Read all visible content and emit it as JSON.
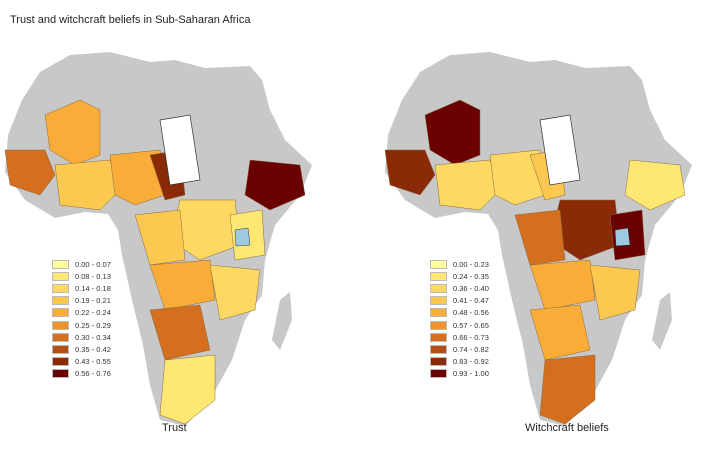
{
  "title": "Trust and witchcraft beliefs in Sub-Saharan Africa",
  "land_color": "#c8c8c8",
  "ramp": [
    "#ffff99",
    "#fee873",
    "#fdd862",
    "#fcc850",
    "#f9ad38",
    "#ee922b",
    "#d36f1e",
    "#b34e14",
    "#8b2a07",
    "#6b0000"
  ],
  "maps": [
    {
      "caption": "Trust",
      "legend": [
        "0.00 - 0.07",
        "0.08 - 0.13",
        "0.14 - 0.18",
        "0.19 - 0.21",
        "0.22 - 0.24",
        "0.25 - 0.29",
        "0.30 - 0.34",
        "0.35 - 0.42",
        "0.43 - 0.55",
        "0.56 - 0.76"
      ]
    },
    {
      "caption": "Witchcraft beliefs",
      "legend": [
        "0.00 - 0.23",
        "0.24 - 0.35",
        "0.36 - 0.40",
        "0.41 - 0.47",
        "0.48 - 0.56",
        "0.57 - 0.65",
        "0.66 - 0.73",
        "0.74 - 0.82",
        "0.83 - 0.92",
        "0.93 - 1.00"
      ]
    }
  ]
}
